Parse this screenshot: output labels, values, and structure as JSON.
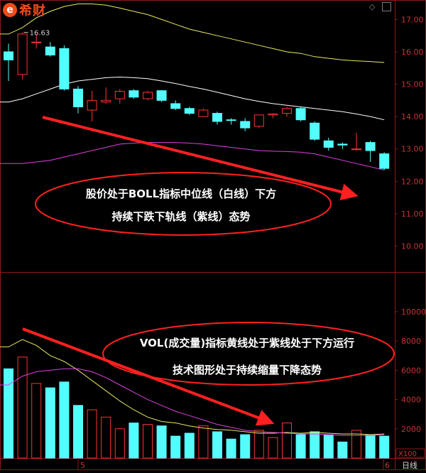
{
  "header": {
    "logo_text": "希财",
    "logo_mark": "e"
  },
  "annotations": {
    "price_line1": "股价处于BOLL指标中位线（白线）下方",
    "price_line2": "持续下跌下轨线（紫线）态势",
    "vol_line1": "VOL(成交量)指标黄线处于紫线处于下方运行",
    "vol_line2": "技术图形处于持续缩量下降态势"
  },
  "footer": {
    "x_tick_left": "5",
    "x_tick_right": "6",
    "period_label": "日线",
    "vol_unit": "X100"
  },
  "colors": {
    "up": "#ff3232",
    "down": "#54fcfc",
    "boll_upper": "#e8e860",
    "boll_mid": "#ffffff",
    "boll_lower": "#e040e0",
    "ma_vol_yellow": "#e8e860",
    "ma_vol_purple": "#e040e0",
    "axis_text": "#c83232",
    "arrow": "#ff2020",
    "ellipse": "#ff2020"
  },
  "chart_data": [
    {
      "type": "candlestick",
      "title": "",
      "max_label": "16.63",
      "y_ticks": [
        10.0,
        11.0,
        12.0,
        13.0,
        14.0,
        15.0,
        16.0,
        17.0
      ],
      "y_tick_labels": [
        "10.00",
        "11.00",
        "12.00",
        "13.00",
        "14.00",
        "15.00",
        "16.00",
        "17.00"
      ],
      "ylim": [
        9.2,
        17.6
      ],
      "candles": [
        {
          "o": 16.0,
          "h": 16.25,
          "l": 15.1,
          "c": 15.75
        },
        {
          "o": 15.3,
          "h": 16.6,
          "l": 15.15,
          "c": 16.55
        },
        {
          "o": 16.3,
          "h": 16.55,
          "l": 16.1,
          "c": 16.3
        },
        {
          "o": 16.15,
          "h": 16.3,
          "l": 15.85,
          "c": 15.9
        },
        {
          "o": 16.1,
          "h": 16.2,
          "l": 14.8,
          "c": 14.85
        },
        {
          "o": 14.85,
          "h": 14.95,
          "l": 14.1,
          "c": 14.3
        },
        {
          "o": 14.2,
          "h": 14.8,
          "l": 13.85,
          "c": 14.5
        },
        {
          "o": 14.45,
          "h": 14.9,
          "l": 14.4,
          "c": 14.5
        },
        {
          "o": 14.55,
          "h": 14.85,
          "l": 14.4,
          "c": 14.78
        },
        {
          "o": 14.8,
          "h": 14.85,
          "l": 14.55,
          "c": 14.6
        },
        {
          "o": 14.55,
          "h": 14.8,
          "l": 14.5,
          "c": 14.75
        },
        {
          "o": 14.8,
          "h": 14.82,
          "l": 14.45,
          "c": 14.5
        },
        {
          "o": 14.4,
          "h": 14.5,
          "l": 14.2,
          "c": 14.25
        },
        {
          "o": 14.25,
          "h": 14.3,
          "l": 14.05,
          "c": 14.1
        },
        {
          "o": 14.0,
          "h": 14.25,
          "l": 14.0,
          "c": 14.2
        },
        {
          "o": 14.1,
          "h": 14.15,
          "l": 13.75,
          "c": 13.85
        },
        {
          "o": 13.9,
          "h": 13.95,
          "l": 13.75,
          "c": 13.88
        },
        {
          "o": 13.85,
          "h": 13.95,
          "l": 13.55,
          "c": 13.65
        },
        {
          "o": 13.7,
          "h": 14.05,
          "l": 13.65,
          "c": 14.05
        },
        {
          "o": 14.05,
          "h": 14.1,
          "l": 13.95,
          "c": 14.08
        },
        {
          "o": 14.1,
          "h": 14.3,
          "l": 14.0,
          "c": 14.25
        },
        {
          "o": 14.25,
          "h": 14.3,
          "l": 13.85,
          "c": 13.9
        },
        {
          "o": 13.8,
          "h": 13.85,
          "l": 13.25,
          "c": 13.3
        },
        {
          "o": 13.25,
          "h": 13.35,
          "l": 12.95,
          "c": 13.05
        },
        {
          "o": 13.15,
          "h": 13.2,
          "l": 13.0,
          "c": 13.12
        },
        {
          "o": 13.0,
          "h": 13.5,
          "l": 12.95,
          "c": 13.0
        },
        {
          "o": 13.2,
          "h": 13.25,
          "l": 12.6,
          "c": 12.95
        },
        {
          "o": 12.85,
          "h": 12.9,
          "l": 12.35,
          "c": 12.4
        }
      ],
      "boll_upper": [
        16.55,
        16.75,
        17.05,
        17.25,
        17.4,
        17.48,
        17.48,
        17.44,
        17.35,
        17.25,
        17.15,
        17.0,
        16.85,
        16.7,
        16.6,
        16.5,
        16.4,
        16.3,
        16.2,
        16.1,
        16.0,
        15.95,
        15.85,
        15.8,
        15.75,
        15.72,
        15.7,
        15.67
      ],
      "boll_mid": [
        14.45,
        14.55,
        14.7,
        14.85,
        15.0,
        15.1,
        15.15,
        15.2,
        15.22,
        15.2,
        15.17,
        15.1,
        15.02,
        14.93,
        14.85,
        14.75,
        14.65,
        14.55,
        14.47,
        14.4,
        14.35,
        14.3,
        14.25,
        14.2,
        14.15,
        14.08,
        14.0,
        13.9
      ],
      "boll_lower": [
        12.55,
        12.55,
        12.6,
        12.65,
        12.75,
        12.85,
        12.95,
        13.05,
        13.15,
        13.18,
        13.2,
        13.2,
        13.2,
        13.18,
        13.15,
        13.1,
        13.05,
        13.0,
        12.95,
        12.93,
        12.92,
        12.9,
        12.85,
        12.75,
        12.65,
        12.55,
        12.45,
        12.35
      ]
    },
    {
      "type": "bar",
      "title": "",
      "y_ticks": [
        2000,
        4000,
        6000,
        8000,
        10000
      ],
      "y_tick_labels": [
        "2000",
        "4000",
        "6000",
        "8000",
        "10000"
      ],
      "ylim": [
        0,
        11500
      ],
      "volumes": [
        6100,
        6900,
        5100,
        4800,
        5200,
        3600,
        3300,
        2800,
        2000,
        2400,
        2300,
        2200,
        1500,
        1700,
        2200,
        1800,
        1300,
        1600,
        1900,
        1400,
        2400,
        1600,
        1800,
        1600,
        1100,
        1900,
        1600,
        1500
      ],
      "ma_yellow": [
        7600,
        8100,
        7700,
        7000,
        6600,
        6000,
        5300,
        4600,
        3900,
        3300,
        2800,
        2500,
        2400,
        2200,
        2050,
        1950,
        1900,
        1800,
        1700,
        1700,
        1750,
        1700,
        1750,
        1700,
        1650,
        1650,
        1600,
        1650
      ],
      "ma_purple": [
        5000,
        5600,
        5900,
        6000,
        6100,
        6100,
        5900,
        5500,
        5000,
        4500,
        4000,
        3600,
        3200,
        2900,
        2600,
        2300,
        2100,
        1900,
        1800,
        1750,
        1700,
        1650,
        1650,
        1600,
        1550,
        1550,
        1550,
        1600
      ]
    }
  ]
}
